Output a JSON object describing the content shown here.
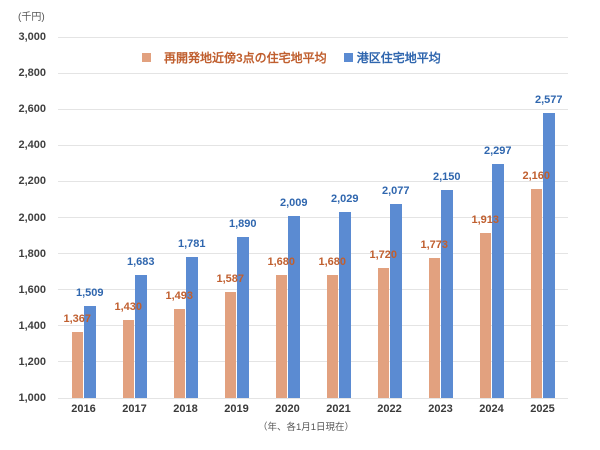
{
  "unit_label": "(千円)",
  "footer_note": "（年、各1月1日現在）",
  "legend": {
    "items": [
      {
        "label": "再開発地近傍3点の住宅地平均",
        "swatch_color": "#E2A17F",
        "text_color": "#C05F2F"
      },
      {
        "label": "港区住宅地平均",
        "swatch_color": "#5B8BD2",
        "text_color": "#2F66AE"
      }
    ]
  },
  "chart_data": {
    "type": "bar",
    "title": "",
    "xlabel": "（年、各1月1日現在）",
    "ylabel": "(千円)",
    "categories": [
      "2016",
      "2017",
      "2018",
      "2019",
      "2020",
      "2021",
      "2022",
      "2023",
      "2024",
      "2025"
    ],
    "series": [
      {
        "key": "redevelopment-avg",
        "name": "再開発地近傍3点の住宅地平均",
        "color": "#E2A17F",
        "label_color": "#C05F2F",
        "values": [
          1367,
          1430,
          1493,
          1587,
          1680,
          1680,
          1720,
          1773,
          1913,
          2160
        ]
      },
      {
        "key": "minato-avg",
        "name": "港区住宅地平均",
        "color": "#5B8BD2",
        "label_color": "#2F66AE",
        "values": [
          1509,
          1683,
          1781,
          1890,
          2009,
          2029,
          2077,
          2150,
          2297,
          2577
        ]
      }
    ],
    "ylim": [
      1000,
      3000
    ],
    "ytick_step": 200,
    "grid": true,
    "legend_position": "top",
    "data_labels": true
  },
  "colors": {
    "background": "#ffffff",
    "gridline": "#e4e4e4",
    "axis_text": "#404040"
  }
}
